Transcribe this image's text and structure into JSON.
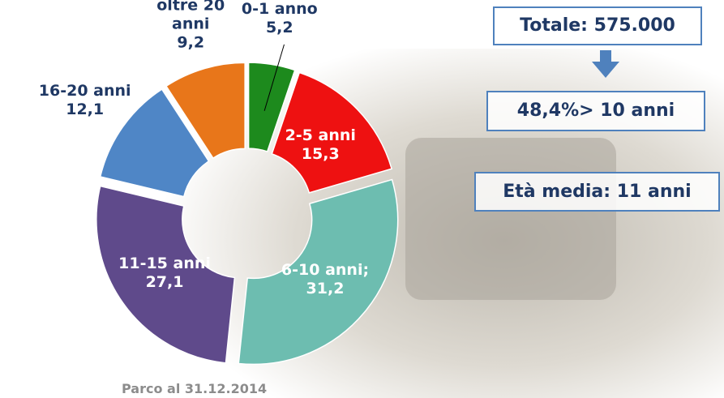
{
  "chart_data": {
    "type": "donut",
    "categories": [
      "0-1 anno",
      "2-5 anni",
      "6-10 anni;",
      "11-15 anni",
      "16-20 anni",
      "oltre 20 anni"
    ],
    "values": [
      5.2,
      15.3,
      31.2,
      27.1,
      12.1,
      9.2
    ],
    "value_labels": [
      "5,2",
      "15,3",
      "31,2",
      "27,1",
      "12,1",
      "9,2"
    ],
    "colors": [
      "#1d8a1d",
      "#ee1111",
      "#6dbdb0",
      "#5f4a8b",
      "#4f86c6",
      "#e8761a"
    ],
    "annotations": [
      "Totale: 575.000",
      "48,4%> 10 anni",
      "Età media: 11 anni"
    ],
    "footnote": "Parco al 31.12.2014"
  }
}
